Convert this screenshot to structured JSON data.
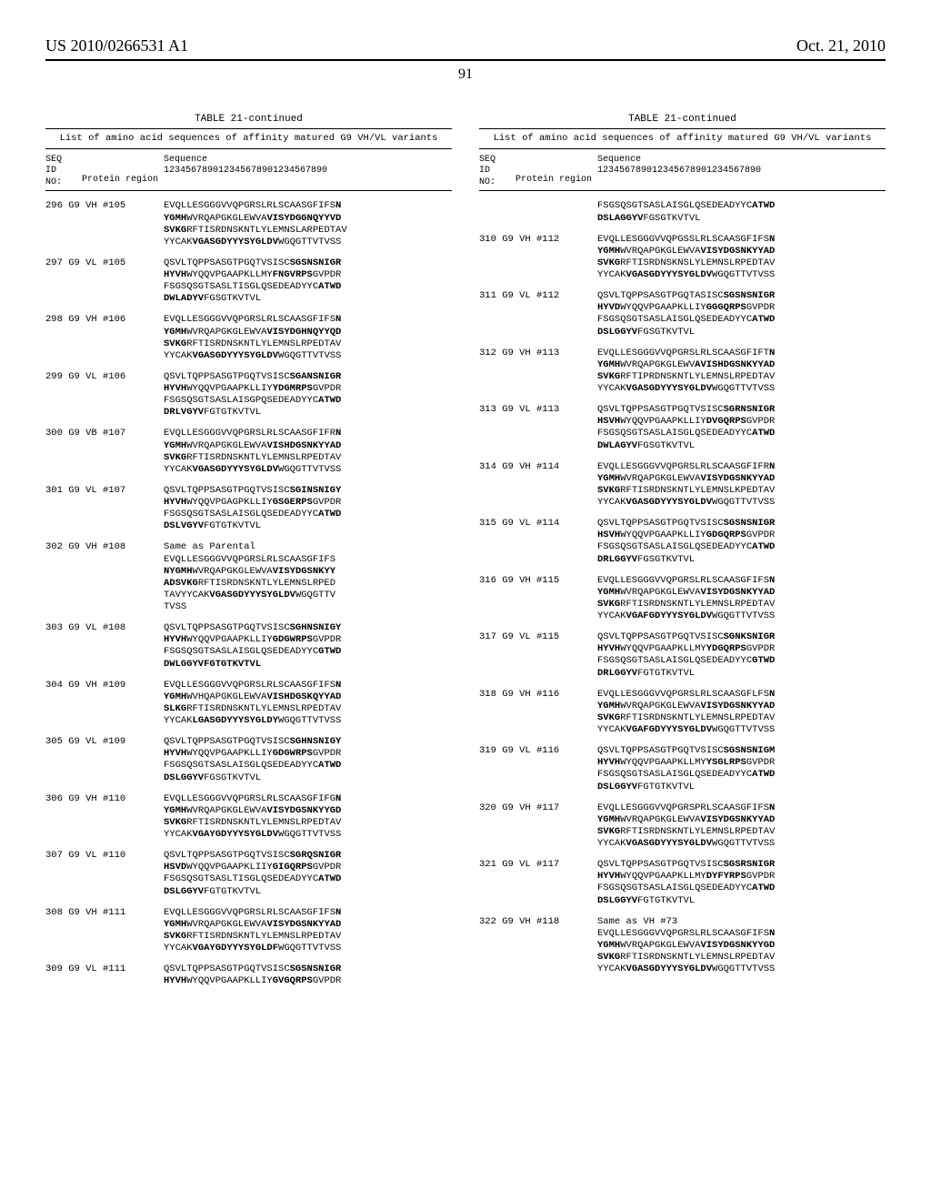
{
  "header": {
    "left": "US 2010/0266531 A1",
    "right": "Oct. 21, 2010"
  },
  "page_number": "91",
  "table_label": "TABLE 21-continued",
  "table_caption": "List of amino acid sequences of affinity matured G9 VH/VL variants",
  "col_header_seq": "SEQ\nID\nNO:",
  "col_header_protein": "Protein region",
  "col_header_sequence": "Sequence\n123456789012345678901234567890",
  "left_entries": [
    {
      "seq": "296",
      "pr": "G9 VH #105",
      "lines": [
        "EVQLLESGGGVVQPGRSLRLSCAASGFIFS<b>N</b>",
        "<b>YGMH</b>WVRQAPGKGLEWVA<b>VISYDGGNQYYVD</b>",
        "<b>SVKG</b>RFTISRDNSKNTLYLEMNSLARPEDTAV",
        "YYCAK<b>VGASGDYYYSYGLDV</b>WGQGTTVTVSS"
      ]
    },
    {
      "seq": "297",
      "pr": "G9 VL #105",
      "lines": [
        "QSVLTQPPSASGTPGQTVSISC<b>SGSNSNIGR</b>",
        "<b>HYVH</b>WYQQVPGAAPKLLMY<b>FNGVRPS</b>GVPDR",
        "FSGSQSGTSASLTISGLQSEDEADYYC<b>ATWD</b>",
        "<b>DWLADYV</b>FGSGTKVTVL"
      ]
    },
    {
      "seq": "298",
      "pr": "G9 VH #106",
      "lines": [
        "EVQLLESGGGVVQPGRSLRLSCAASGFIFS<b>N</b>",
        "<b>YGMH</b>WVRQAPGKGLEWVA<b>VISYDGHNQYYQD</b>",
        "<b>SVKG</b>RFTISRDNSKNTLYLEMNSLRPEDTAV",
        "YYCAK<b>VGASGDYYYSYGLDV</b>WGQGTTVTVSS"
      ]
    },
    {
      "seq": "299",
      "pr": "G9 VL #106",
      "lines": [
        "QSVLTQPPSASGTPGQTVSISC<b>SGANSNIGR</b>",
        "<b>HYVH</b>WYQQVPGAAPKLLIY<b>YDGMRPS</b>GVPDR",
        "FSGSQSGTSASLAISGPQSEDEADYYC<b>ATWD</b>",
        "<b>DRLVGYV</b>FGTGTKVTVL"
      ]
    },
    {
      "seq": "300",
      "pr": "G9 VB #107",
      "lines": [
        "EVQLLESGGGVVQPGRSLRLSCAASGFIFR<b>N</b>",
        "<b>YGMH</b>WVRQAPGKGLEWVA<b>VISHDGSNKYYAD</b>",
        "<b>SVKG</b>RFTISRDNSKNTLYLEMNSLRPEDTAV",
        "YYCAK<b>VGASGDYYYSYGLDV</b>WGQGTTVTVSS"
      ]
    },
    {
      "seq": "301",
      "pr": "G9 VL #107",
      "lines": [
        "QSVLTQPPSASGTPGQTVSISC<b>SGINSNIGY</b>",
        "<b>HYVH</b>WYQQVPGAGPKLLIY<b>GSGERPS</b>GVPDR",
        "FSGSQSGTSASLAISGLQSEDEADYYC<b>ATWD</b>",
        "<b>DSLVGYV</b>FGTGTKVTVL"
      ]
    },
    {
      "seq": "302",
      "pr": "G9 VH #108",
      "lines": [
        "Same as Parental",
        "EVQLLESGGGVVQPGRSLRLSCAASGFIFS",
        "<b>NYGMH</b>WVRQAPGKGLEWVA<b>VISYDGSNKYY</b>",
        "<b>ADSVKG</b>RFTISRDNSKNTLYLEMNSLRPED",
        "TAVYYCAK<b>VGASGDYYYSYGLDV</b>WGQGTTV",
        "TVSS"
      ]
    },
    {
      "seq": "303",
      "pr": "G9 VL #108",
      "lines": [
        "QSVLTQPPSASGTPGQTVSISC<b>SGHNSNIGY</b>",
        "<b>HYVH</b>WYQQVPGAAPKLLIY<b>GDGWRPS</b>GVPDR",
        "FSGSQSGTSASLAISGLQSEDEADYYC<b>GTWD</b>",
        "<b>DWLGGYVFGTGTKVTVL</b>"
      ]
    },
    {
      "seq": "304",
      "pr": "G9 VH #109",
      "lines": [
        "EVQLLESGGGVVQPGRSLRLSCAASGFIFS<b>N</b>",
        "<b>YGMH</b>WVHQAPGKGLEWVA<b>VISHDGSKQYYAD</b>",
        "<b>SLKG</b>RFTISRDNSKNTLYLEMNSLRPEDTAV",
        "YYCAK<b>LGASGDYYYSYGLDY</b>WGQGTTVTVSS"
      ]
    },
    {
      "seq": "305",
      "pr": "G9 VL #109",
      "lines": [
        "QSVLTQPPSASGTPGQTVSISC<b>SGHNSNIGY</b>",
        "<b>HYVH</b>WYQQVPGAAPKLLIY<b>GDGWRPS</b>GVPDR",
        "FSGSQSGTSASLAISGLQSEDEADYYC<b>ATWD</b>",
        "<b>DSLGGYV</b>FGSGTKVTVL"
      ]
    },
    {
      "seq": "306",
      "pr": "G9 VH #110",
      "lines": [
        "EVQLLESGGGVVQPGRSLRLSCAASGFIFG<b>N</b>",
        "<b>YGMH</b>WVRQAPGKGLEWVA<b>VISYDGSNKYYGD</b>",
        "<b>SVKG</b>RFTISRDNSKNTLYLEMNSLRPEDTAV",
        "YYCAK<b>VGAYGDYYYSYGLDV</b>WGQGTTVTVSS"
      ]
    },
    {
      "seq": "307",
      "pr": "G9 VL #110",
      "lines": [
        "QSVLTQPPSASGTPGQTVSISC<b>SGRQSNIGR</b>",
        "<b>HSVD</b>WYQQVPGAAPKLIIY<b>GIGQRPS</b>GVPDR",
        "FSGSQSGTSASLTISGLQSEDEADYYC<b>ATWD</b>",
        "<b>DSLGGYV</b>FGTGTKVTVL"
      ]
    },
    {
      "seq": "308",
      "pr": "G9 VH #111",
      "lines": [
        "EVQLLESGGGVVQPGRSLRLSCAASGFIFS<b>N</b>",
        "<b>YGMH</b>WVRQAPGKGLEWVA<b>VISYDGSNKYYAD</b>",
        "<b>SVKG</b>RFTISRDNSKNTLYLEMNSLRPEDTAV",
        "YYCAK<b>VGAYGDYYYSYGLDF</b>WGQGTTVTVSS"
      ]
    },
    {
      "seq": "309",
      "pr": "G9 VL #111",
      "lines": [
        "QSVLTQPPSASGTPGQTVSISC<b>SGSNSNIGR</b>",
        "<b>HYVH</b>WYQQVPGAAPKLLIY<b>GVGQRPS</b>GVPDR"
      ]
    }
  ],
  "right_continuation": [
    "FSGSQSGTSASLAISGLQSEDEADYYC<b>ATWD</b>",
    "<b>DSLAGGYV</b>FGSGTKVTVL"
  ],
  "right_entries": [
    {
      "seq": "310",
      "pr": "G9 VH #112",
      "lines": [
        "EVQLLESGGGVVQPGSSLRLSCAASGFIFS<b>N</b>",
        "<b>YGMH</b>WVRQAPGKGLEWVA<b>VISYDGSNKYYAD</b>",
        "<b>SVKG</b>RFTISRDNSKNSLYLEMNSLRPEDTAV",
        "YYCAK<b>VGASGDYYYSYGLDV</b>WGQGTTVTVSS"
      ]
    },
    {
      "seq": "311",
      "pr": "G9 VL #112",
      "lines": [
        "QSVLTQPPSASGTPGQTASISC<b>SGSNSNIGR</b>",
        "<b>HYVD</b>WYQQVPGAAPKLLIY<b>GGGQRPS</b>GVPDR",
        "FSGSQSGTSASLAISGLQSEDEADYYC<b>ATWD</b>",
        "<b>DSLGGYV</b>FGSGTKVTVL"
      ]
    },
    {
      "seq": "312",
      "pr": "G9 VH #113",
      "lines": [
        "EVQLLESGGGVVQPGRSLRLSCAASGFIFT<b>N</b>",
        "<b>YGMH</b>WVRQAPGKGLEWV<b>AVISHDGSNKYYAD</b>",
        "<b>SVKG</b>RFTIPRDNSKNTLYLEMNSLRPEDTAV",
        "YYCAK<b>VGASGDYYYSYGLDV</b>WGQGTTVTVSS"
      ]
    },
    {
      "seq": "313",
      "pr": "G9 VL #113",
      "lines": [
        "QSVLTQPPSASGTPGQTVSISC<b>SGRNSNIGR</b>",
        "<b>HSVH</b>WYQQVPGAAPKLLIY<b>DVGQRPS</b>GVPDR",
        "FSGSQSGTSASLAISGLQSEDEADYYC<b>ATWD</b>",
        "<b>DWLAGYV</b>FGSGTKVTVL"
      ]
    },
    {
      "seq": "314",
      "pr": "G9 VH #114",
      "lines": [
        "EVQLLESGGGVVQPGRSLRLSCAASGFIFR<b>N</b>",
        "<b>YGMH</b>WVRQAPGKGLEWVA<b>VISYDGSNKYYAD</b>",
        "<b>SVKG</b>RFTISRDNSKNTLYLEMNSLKPEDTAV",
        "YYCAK<b>VGASGDYYYSYGLDV</b>WGQGTTVTVSS"
      ]
    },
    {
      "seq": "315",
      "pr": "G9 VL #114",
      "lines": [
        "QSVLTQPPSASGTPGQTVSISC<b>SGSNSNIGR</b>",
        "<b>HSVH</b>WYQQVPGAAPKLLIY<b>GDGQRPS</b>GVPDR",
        "FSGSQSGTSASLAISGLQSEDEADYYC<b>ATWD</b>",
        "<b>DRLGGYV</b>FGSGTKVTVL"
      ]
    },
    {
      "seq": "316",
      "pr": "G9 VH #115",
      "lines": [
        "EVQLLESGGGVVQPGRSLRLSCAASGFIFS<b>N</b>",
        "<b>YGMH</b>WVRQAPGKGLEWVA<b>VISYDGSNKYYAD</b>",
        "<b>SVKG</b>RFTISRDNSKNTLYLEMNSLRPEDTAV",
        "YYCAK<b>VGAFGDYYYSYGLDV</b>WGQGTTVTVSS"
      ]
    },
    {
      "seq": "317",
      "pr": "G9 VL #115",
      "lines": [
        "QSVLTQPPSASGTPGQTVSISC<b>SGNKSNIGR</b>",
        "<b>HYVH</b>WYQQVPGAAPKLLMY<b>YDGQRPS</b>GVPDR",
        "FSGSQSGTSASLAISGLQSEDEADYYC<b>GTWD</b>",
        "<b>DRLGGYV</b>FGTGTKVTVL"
      ]
    },
    {
      "seq": "318",
      "pr": "G9 VH #116",
      "lines": [
        "EVQLLESGGGVVQPGRSLRLSCAASGFLFS<b>N</b>",
        "<b>YGMH</b>WVRQAPGKGLEWVA<b>VISYDGSNKYYAD</b>",
        "<b>SVKG</b>RFTISRDNSKNTLYLEMNSLRPEDTAV",
        "YYCAK<b>VGAFGDYYYSYGLDV</b>WGQGTTVTVSS"
      ]
    },
    {
      "seq": "319",
      "pr": "G9 VL #116",
      "lines": [
        "QSVLTQPPSASGTPGQTVSISC<b>SGSNSNIGM</b>",
        "<b>HYVH</b>WYQQVPGAAPKLLMY<b>YSGLRPS</b>GVPDR",
        "FSGSQSGTSASLAISGLQSEDEADYYC<b>ATWD</b>",
        "<b>DSLGGYV</b>FGTGTKVTVL"
      ]
    },
    {
      "seq": "320",
      "pr": "G9 VH #117",
      "lines": [
        "EVQLLESGGGVVQPGRSPRLSCAASGFIFS<b>N</b>",
        "<b>YGMH</b>WVRQAPGKGLEWVA<b>VISYDGSNKYYAD</b>",
        "<b>SVKG</b>RFTISRDNSKNTLYLEMNSLRPEDTAV",
        "YYCAK<b>VGASGDYYYSYGLDV</b>WGQGTTVTVSS"
      ]
    },
    {
      "seq": "321",
      "pr": "G9 VL #117",
      "lines": [
        "QSVLTQPPSASGTPGQTVSISC<b>SGSRSNIGR</b>",
        "<b>HYVH</b>WYQQVPGAAPKLLMY<b>DYFYRPS</b>GVPDR",
        "FSGSQSGTSASLAISGLQSEDEADYYC<b>ATWD</b>",
        "<b>DSLGGYV</b>FGTGTKVTVL"
      ]
    },
    {
      "seq": "322",
      "pr": "G9 VH #118",
      "lines": [
        "Same as VH #73",
        "EVQLLESGGGVVQPGRSLRLSCAASGFIFS<b>N</b>",
        "<b>YGMH</b>WVRQAPGKGLEWVA<b>VISYDGSNKYYGD</b>",
        "<b>SVKG</b>RFTISRDNSKNTLYLEMNSLRPEDTAV",
        "YYCAK<b>VGASGDYYYSYGLDV</b>WGQGTTVTVSS"
      ]
    }
  ]
}
